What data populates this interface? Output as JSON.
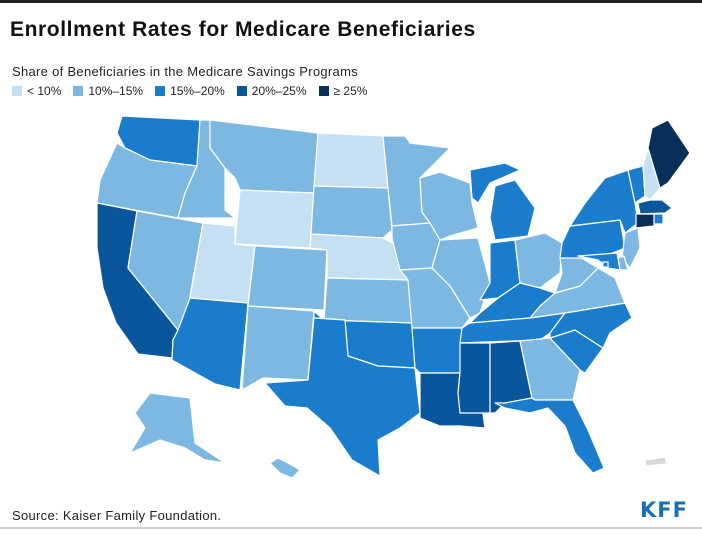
{
  "title": "Enrollment Rates for Medicare Beneficiaries",
  "legend": {
    "title": "Share of Beneficiaries in the Medicare Savings Programs",
    "items": [
      {
        "label": "< 10%",
        "color": "#c5e0f3"
      },
      {
        "label": "10%–15%",
        "color": "#7db8e3"
      },
      {
        "label": "15%–20%",
        "color": "#1a7ccc"
      },
      {
        "label": "20%–25%",
        "color": "#0a569c"
      },
      {
        "label": "≥ 25%",
        "color": "#082f57"
      }
    ]
  },
  "states": [
    {
      "id": "WA",
      "bin": 2
    },
    {
      "id": "OR",
      "bin": 1
    },
    {
      "id": "CA",
      "bin": 3
    },
    {
      "id": "NV",
      "bin": 1
    },
    {
      "id": "ID",
      "bin": 1
    },
    {
      "id": "MT",
      "bin": 1
    },
    {
      "id": "WY",
      "bin": 0
    },
    {
      "id": "UT",
      "bin": 0
    },
    {
      "id": "AZ",
      "bin": 2
    },
    {
      "id": "CO",
      "bin": 1
    },
    {
      "id": "NM",
      "bin": 1
    },
    {
      "id": "ND",
      "bin": 0
    },
    {
      "id": "SD",
      "bin": 1
    },
    {
      "id": "NE",
      "bin": 0
    },
    {
      "id": "KS",
      "bin": 1
    },
    {
      "id": "OK",
      "bin": 2
    },
    {
      "id": "TX",
      "bin": 2
    },
    {
      "id": "MN",
      "bin": 1
    },
    {
      "id": "IA",
      "bin": 1
    },
    {
      "id": "MO",
      "bin": 1
    },
    {
      "id": "AR",
      "bin": 2
    },
    {
      "id": "LA",
      "bin": 3
    },
    {
      "id": "WI",
      "bin": 1
    },
    {
      "id": "IL",
      "bin": 1
    },
    {
      "id": "MI",
      "bin": 2
    },
    {
      "id": "IN",
      "bin": 2
    },
    {
      "id": "OH",
      "bin": 1
    },
    {
      "id": "KY",
      "bin": 2
    },
    {
      "id": "TN",
      "bin": 2
    },
    {
      "id": "MS",
      "bin": 3
    },
    {
      "id": "AL",
      "bin": 3
    },
    {
      "id": "GA",
      "bin": 1
    },
    {
      "id": "FL",
      "bin": 2
    },
    {
      "id": "SC",
      "bin": 2
    },
    {
      "id": "NC",
      "bin": 2
    },
    {
      "id": "VA",
      "bin": 1
    },
    {
      "id": "WV",
      "bin": 1
    },
    {
      "id": "PA",
      "bin": 2
    },
    {
      "id": "NY",
      "bin": 2
    },
    {
      "id": "VT",
      "bin": 2
    },
    {
      "id": "NH",
      "bin": 0
    },
    {
      "id": "ME",
      "bin": 4
    },
    {
      "id": "MA",
      "bin": 3
    },
    {
      "id": "RI",
      "bin": 2
    },
    {
      "id": "CT",
      "bin": 4
    },
    {
      "id": "NJ",
      "bin": 1
    },
    {
      "id": "DE",
      "bin": 1
    },
    {
      "id": "MD",
      "bin": 2
    },
    {
      "id": "DC",
      "bin": 2
    },
    {
      "id": "AK",
      "bin": 1
    },
    {
      "id": "HI",
      "bin": 1
    },
    {
      "id": "PR",
      "bin": -1
    }
  ],
  "no_data_color": "#d9d9d9",
  "source": "Source: Kaiser Family Foundation.",
  "logo": "KFF"
}
